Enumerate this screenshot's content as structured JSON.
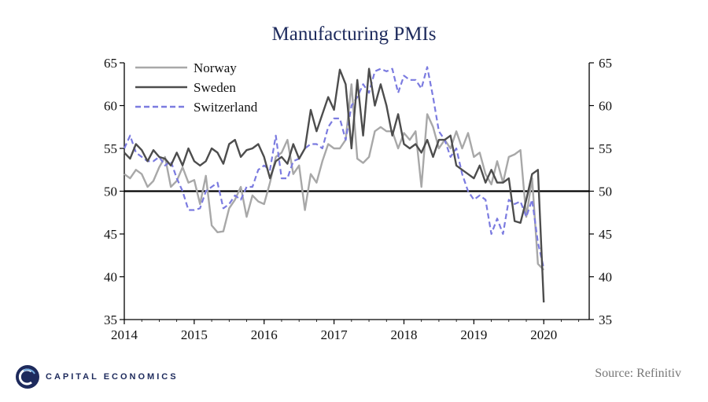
{
  "title": "Manufacturing PMIs",
  "source": "Source: Refinitiv",
  "logo_text": "CAPITAL ECONOMICS",
  "colors": {
    "Norway": "#a8a8a8",
    "Sweden": "#4d4d4d",
    "Switzerland": "#7b7be0",
    "title": "#1d2a5c"
  },
  "chart_data": {
    "type": "line",
    "title": "Manufacturing PMIs",
    "x_start": 2014.0,
    "x_step": 0.0833333,
    "xlim": [
      2014,
      2020.65
    ],
    "ylim": [
      35,
      65
    ],
    "yticks": [
      35,
      40,
      45,
      50,
      55,
      60,
      65
    ],
    "xtick_labels": [
      "2014",
      "2015",
      "2016",
      "2017",
      "2018",
      "2019",
      "2020"
    ],
    "reference_line": 50,
    "series": [
      {
        "name": "Norway",
        "style": "solid",
        "values": [
          52.0,
          51.5,
          52.5,
          52.0,
          50.5,
          51.2,
          52.8,
          54.0,
          50.5,
          51.2,
          52.8,
          51.0,
          51.3,
          48.5,
          51.8,
          46.0,
          45.2,
          45.3,
          48.0,
          49.0,
          50.5,
          47.0,
          49.5,
          48.8,
          48.5,
          51.0,
          54.0,
          54.5,
          56.0,
          52.0,
          53.0,
          47.8,
          52.0,
          51.0,
          53.5,
          55.5,
          55.0,
          55.0,
          56.0,
          62.5,
          53.8,
          53.3,
          54.0,
          57.0,
          57.5,
          57.0,
          57.0,
          55.0,
          56.8,
          56.0,
          57.0,
          50.5,
          59.0,
          57.5,
          55.0,
          56.0,
          55.0,
          57.0,
          55.0,
          56.8,
          54.0,
          54.5,
          52.0,
          50.8,
          53.5,
          51.0,
          54.0,
          54.3,
          54.8,
          47.0,
          51.5,
          41.5,
          40.8
        ]
      },
      {
        "name": "Sweden",
        "style": "solid",
        "values": [
          54.5,
          53.8,
          55.5,
          54.8,
          53.5,
          54.8,
          54.0,
          53.8,
          53.0,
          54.5,
          53.0,
          55.0,
          53.5,
          53.0,
          53.5,
          55.0,
          54.5,
          53.2,
          55.5,
          56.0,
          54.0,
          54.8,
          55.0,
          55.5,
          54.0,
          51.5,
          53.5,
          54.0,
          53.2,
          55.5,
          53.8,
          55.0,
          59.5,
          57.0,
          59.0,
          61.0,
          59.5,
          64.2,
          62.5,
          55.0,
          63.0,
          56.5,
          64.3,
          60.0,
          62.5,
          60.0,
          56.5,
          59.0,
          55.5,
          55.0,
          55.5,
          54.5,
          56.0,
          54.0,
          56.0,
          56.0,
          56.5,
          53.0,
          52.5,
          52.0,
          51.5,
          53.0,
          51.0,
          52.5,
          51.0,
          51.0,
          51.5,
          46.5,
          46.3,
          49.0,
          52.0,
          52.5,
          37.0
        ]
      },
      {
        "name": "Switzerland",
        "style": "dashed",
        "values": [
          55.0,
          56.5,
          54.5,
          54.0,
          53.5,
          53.5,
          54.0,
          53.0,
          53.5,
          51.5,
          50.0,
          47.8,
          47.8,
          48.0,
          50.0,
          50.5,
          51.0,
          48.0,
          48.5,
          49.5,
          49.0,
          50.5,
          50.5,
          52.5,
          53.0,
          52.5,
          56.5,
          51.5,
          51.5,
          53.5,
          53.8,
          55.0,
          55.5,
          55.5,
          55.0,
          57.5,
          58.5,
          58.5,
          56.0,
          60.0,
          61.0,
          62.5,
          61.5,
          64.0,
          64.3,
          64.0,
          64.3,
          61.5,
          63.5,
          63.0,
          63.0,
          62.0,
          64.5,
          61.0,
          57.0,
          56.0,
          54.0,
          55.0,
          52.0,
          50.0,
          49.0,
          49.5,
          49.0,
          45.0,
          46.8,
          45.0,
          49.0,
          48.5,
          48.8,
          47.0,
          49.0,
          44.0,
          41.0
        ]
      }
    ]
  }
}
